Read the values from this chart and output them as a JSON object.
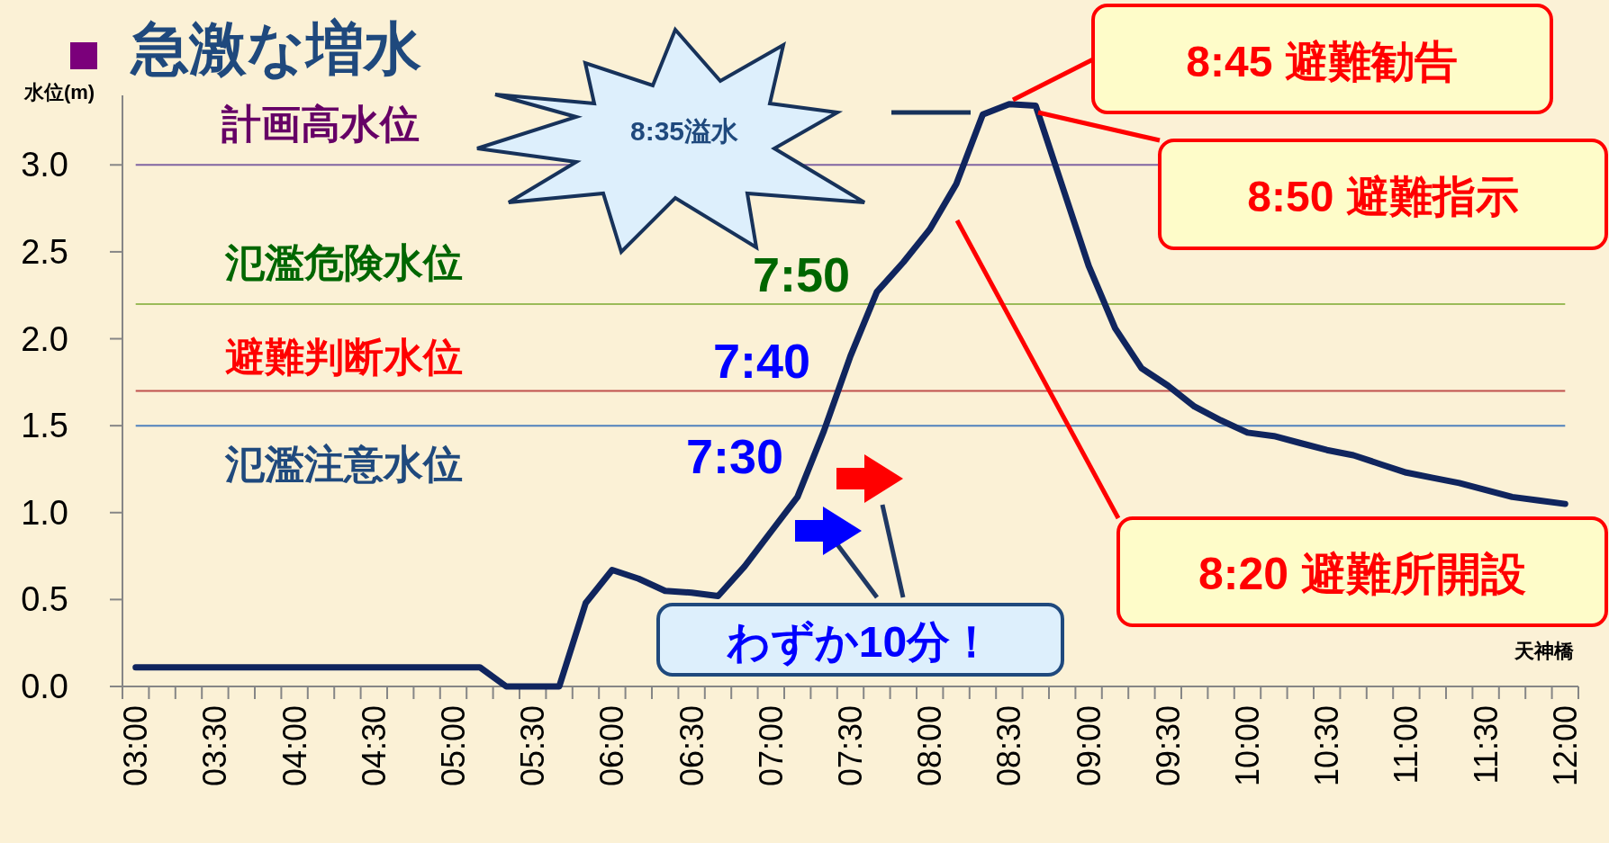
{
  "chart_data": {
    "type": "line",
    "title": "急激な増水",
    "ylabel": "水位(m)",
    "categories": [
      "03:00",
      null,
      null,
      "03:30",
      null,
      null,
      "04:00",
      null,
      null,
      "04:30",
      null,
      null,
      "05:00",
      null,
      null,
      "05:30",
      null,
      null,
      "06:00",
      null,
      null,
      "06:30",
      null,
      null,
      "07:00",
      null,
      null,
      "07:30",
      null,
      null,
      "08:00",
      null,
      null,
      "08:30",
      null,
      null,
      "09:00",
      null,
      null,
      "09:30",
      null,
      null,
      "10:00",
      null,
      null,
      "10:30",
      null,
      null,
      "11:00",
      null,
      null,
      "11:30",
      null,
      null,
      "12:00"
    ],
    "series": [
      {
        "color": "#10255e",
        "values": [
          0.11,
          0.11,
          0.11,
          0.11,
          0.11,
          0.11,
          0.11,
          0.11,
          0.11,
          0.11,
          0.11,
          0.11,
          0.11,
          0.11,
          0,
          0,
          0,
          0.48,
          0.67,
          0.62,
          0.55,
          0.54,
          0.52,
          0.69,
          0.89,
          1.09,
          1.47,
          1.9,
          2.27,
          2.44,
          2.63,
          2.89,
          3.29,
          3.35,
          3.34,
          2.88,
          2.42,
          2.06,
          1.83,
          1.73,
          1.61,
          1.53,
          1.46,
          1.44,
          1.4,
          1.36,
          1.33,
          1.28,
          1.23,
          1.2,
          1.17,
          1.13,
          1.09,
          1.07,
          1.05
        ]
      }
    ],
    "ylim": [
      0,
      3.4
    ],
    "yticks": [
      {
        "value": 0,
        "label": "0.0"
      },
      {
        "value": 0.5,
        "label": "0.5"
      },
      {
        "value": 1,
        "label": "1.0"
      },
      {
        "value": 1.5,
        "label": "1.5"
      },
      {
        "value": 2,
        "label": "2.0"
      },
      {
        "value": 2.5,
        "label": "2.5"
      },
      {
        "value": 3,
        "label": "3.0"
      }
    ],
    "ref_lines": [
      {
        "axis": "y",
        "value": 3.0,
        "label": "計画高水位",
        "color": "#8064a2"
      },
      {
        "axis": "y",
        "value": 2.2,
        "label": "氾濫危険水位",
        "color": "#9bbb59"
      },
      {
        "axis": "y",
        "value": 1.7,
        "label": "避難判断水位",
        "color": "#c0504d"
      },
      {
        "axis": "y",
        "value": 1.5,
        "label": "氾濫注意水位",
        "color": "#4f81bd"
      }
    ],
    "annotations": [
      "8:35溢水",
      "7:50",
      "7:40",
      "7:30",
      "8:45 避難勧告",
      "8:50 避難指示",
      "8:20 避難所開設",
      "わずか10分！",
      "天神橋"
    ],
    "grid": false,
    "marker": "none",
    "line_style": "solid"
  }
}
